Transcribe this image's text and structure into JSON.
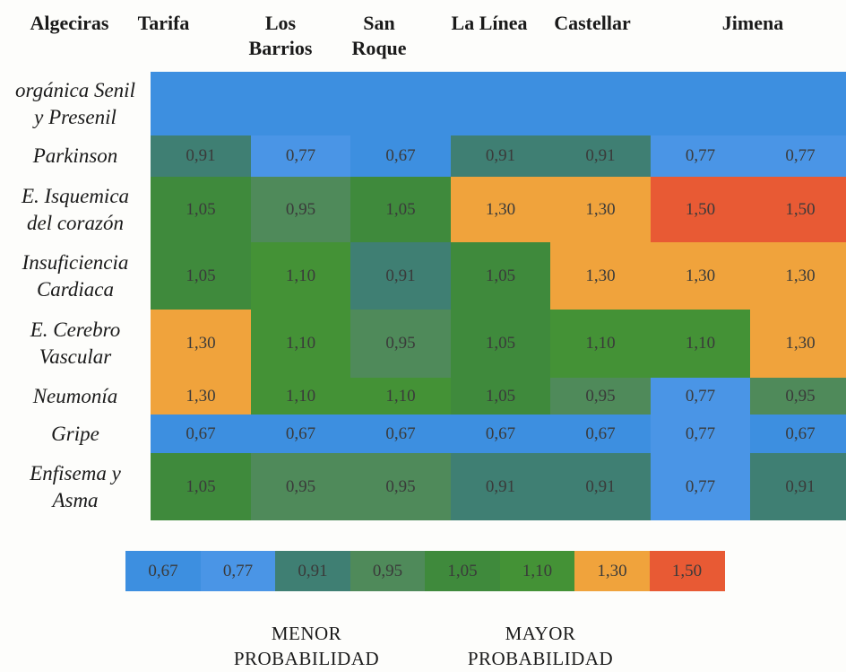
{
  "chart_data": {
    "type": "heatmap",
    "columns": [
      "Algeciras",
      "Tarifa",
      "Los\nBarrios",
      "San\nRoque",
      "La Línea",
      "Castellar",
      "Jimena"
    ],
    "row_labels": [
      "orgánica Senil\ny Presenil",
      "Parkinson",
      "E. Isquemica\ndel corazón",
      "Insuficiencia\nCardiaca",
      "E. Cerebro\nVascular",
      "Neumonía",
      "Gripe",
      "Enfisema y\nAsma"
    ],
    "rows": [
      [
        "",
        "",
        "",
        "",
        "",
        "",
        ""
      ],
      [
        "0,91",
        "0,77",
        "0,67",
        "0,91",
        "0,91",
        "0,77",
        "0,77"
      ],
      [
        "1,05",
        "0,95",
        "1,05",
        "1,30",
        "1,30",
        "1,50",
        "1,50"
      ],
      [
        "1,05",
        "1,10",
        "0,91",
        "1,05",
        "1,30",
        "1,30",
        "1,30"
      ],
      [
        "1,30",
        "1,10",
        "0,95",
        "1,05",
        "1,10",
        "1,10",
        "1,30"
      ],
      [
        "1,30",
        "1,10",
        "1,10",
        "1,05",
        "0,95",
        "0,77",
        "0,95"
      ],
      [
        "0,67",
        "0,67",
        "0,67",
        "0,67",
        "0,67",
        "0,77",
        "0,67"
      ],
      [
        "1,05",
        "0,95",
        "0,95",
        "0,91",
        "0,91",
        "0,77",
        "0,91"
      ]
    ],
    "legend": {
      "values": [
        "0,67",
        "0,77",
        "0,91",
        "0,95",
        "1,05",
        "1,10",
        "1,30",
        "1,50"
      ],
      "low_caption": "MENOR\nPROBABILIDAD",
      "high_caption": "MAYOR\nPROBABILIDAD"
    },
    "colors": {
      "0,67": "#3d8fe0",
      "0,77": "#4a95e6",
      "0,91": "#3f7f73",
      "0,95": "#4f8a5a",
      "1,05": "#3f8a3c",
      "1,10": "#449236",
      "1,30": "#f0a33c",
      "1,50": "#e85a34",
      "blank": "#3d8fe0"
    }
  }
}
